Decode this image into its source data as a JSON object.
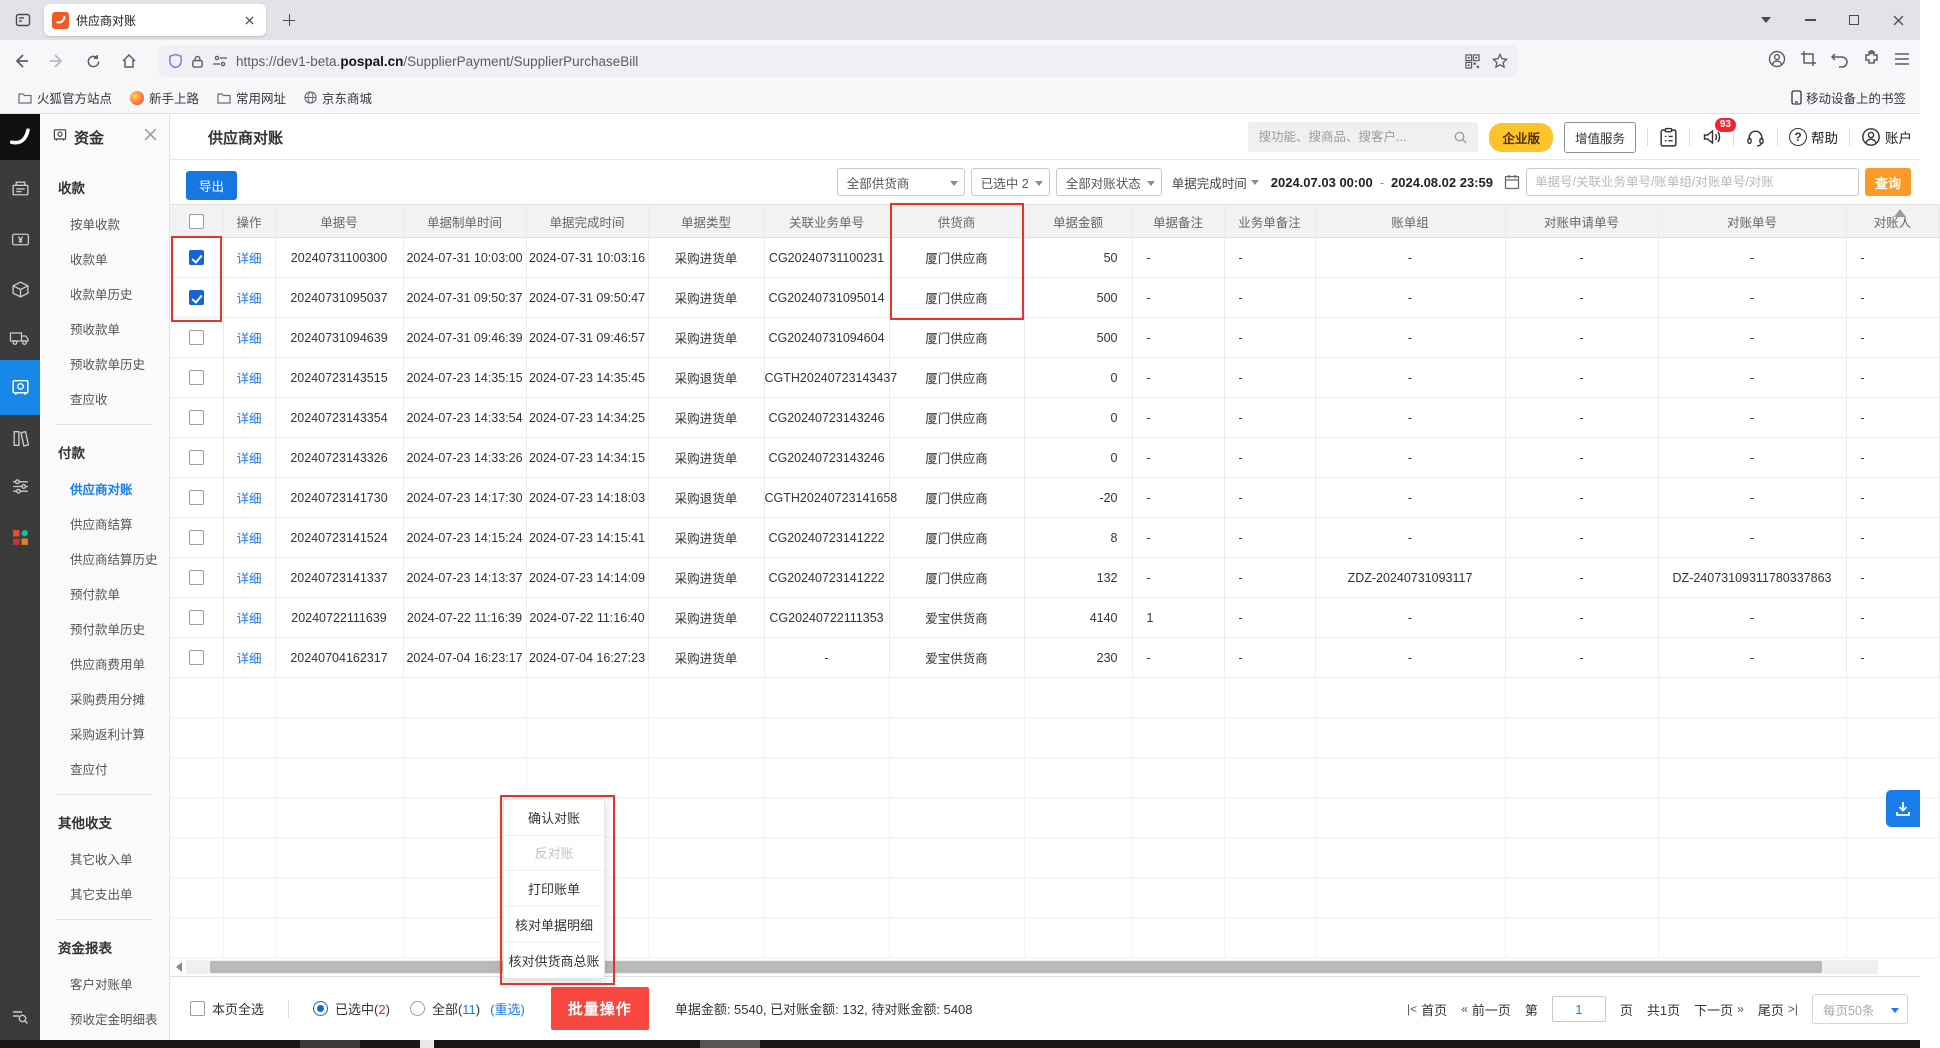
{
  "browser": {
    "tab_title": "供应商对账",
    "url_prefix": "https://dev1-beta.",
    "url_domain": "pospal.cn",
    "url_path": "/SupplierPayment/SupplierPurchaseBill",
    "bookmarks": [
      "火狐官方站点",
      "新手上路",
      "常用网址",
      "京东商城"
    ],
    "bookmarks_right": "移动设备上的书签"
  },
  "icons": {
    "help": "?"
  },
  "sidebar": {
    "title": "资金",
    "sections": [
      {
        "heading": "收款",
        "items": [
          {
            "label": "按单收款"
          },
          {
            "label": "收款单"
          },
          {
            "label": "收款单历史"
          },
          {
            "label": "预收款单"
          },
          {
            "label": "预收款单历史"
          },
          {
            "label": "查应收"
          }
        ]
      },
      {
        "heading": "付款",
        "items": [
          {
            "label": "供应商对账",
            "active": true
          },
          {
            "label": "供应商结算"
          },
          {
            "label": "供应商结算历史"
          },
          {
            "label": "预付款单"
          },
          {
            "label": "预付款单历史"
          },
          {
            "label": "供应商费用单"
          },
          {
            "label": "采购费用分摊"
          },
          {
            "label": "采购返利计算"
          },
          {
            "label": "查应付"
          }
        ]
      },
      {
        "heading": "其他收支",
        "items": [
          {
            "label": "其它收入单"
          },
          {
            "label": "其它支出单"
          }
        ]
      },
      {
        "heading": "资金报表",
        "items": [
          {
            "label": "客户对账单"
          },
          {
            "label": "预收定金明细表"
          }
        ]
      }
    ]
  },
  "header": {
    "page_title": "供应商对账",
    "search_placeholder": "搜功能、搜商品、搜客户...",
    "edition_badge": "企业版",
    "vas_button": "增值服务",
    "notice_count": "93",
    "help_label": "帮助",
    "account_label": "账户"
  },
  "toolbar": {
    "export_label": "导出",
    "supplier_filter": "全部供货商",
    "selected_filter": "已选中 2",
    "status_filter": "全部对账状态",
    "time_type_filter": "单据完成时间",
    "date_start": "2024.07.03 00:00",
    "date_separator": "-",
    "date_end": "2024.08.02 23:59",
    "keyword_placeholder": "单据号/关联业务单号/账单组/对账单号/对账",
    "query_button": "查询"
  },
  "table": {
    "columns": [
      "",
      "操作",
      "单据号",
      "单据制单时间",
      "单据完成时间",
      "单据类型",
      "关联业务单号",
      "供货商",
      "单据金额",
      "单据备注",
      "业务单备注",
      "账单组",
      "对账申请单号",
      "对账单号",
      "对账人"
    ],
    "rows": [
      {
        "checked": true,
        "action": "详细",
        "bill_no": "20240731100300",
        "created": "2024-07-31 10:03:00",
        "completed": "2024-07-31 10:03:16",
        "type": "采购进货单",
        "related": "CG20240731100231",
        "supplier": "厦门供应商",
        "amount": "50",
        "remark": "-",
        "biz_remark": "-",
        "group": "-",
        "apply_no": "-",
        "recon_no": "-",
        "person": "-"
      },
      {
        "checked": true,
        "action": "详细",
        "bill_no": "20240731095037",
        "created": "2024-07-31 09:50:37",
        "completed": "2024-07-31 09:50:47",
        "type": "采购进货单",
        "related": "CG20240731095014",
        "supplier": "厦门供应商",
        "amount": "500",
        "remark": "-",
        "biz_remark": "-",
        "group": "-",
        "apply_no": "-",
        "recon_no": "-",
        "person": "-"
      },
      {
        "checked": false,
        "action": "详细",
        "bill_no": "20240731094639",
        "created": "2024-07-31 09:46:39",
        "completed": "2024-07-31 09:46:57",
        "type": "采购进货单",
        "related": "CG20240731094604",
        "supplier": "厦门供应商",
        "amount": "500",
        "remark": "-",
        "biz_remark": "-",
        "group": "-",
        "apply_no": "-",
        "recon_no": "-",
        "person": "-"
      },
      {
        "checked": false,
        "action": "详细",
        "bill_no": "20240723143515",
        "created": "2024-07-23 14:35:15",
        "completed": "2024-07-23 14:35:45",
        "type": "采购退货单",
        "related": "CGTH20240723143437",
        "supplier": "厦门供应商",
        "amount": "0",
        "remark": "-",
        "biz_remark": "-",
        "group": "-",
        "apply_no": "-",
        "recon_no": "-",
        "person": "-"
      },
      {
        "checked": false,
        "action": "详细",
        "bill_no": "20240723143354",
        "created": "2024-07-23 14:33:54",
        "completed": "2024-07-23 14:34:25",
        "type": "采购进货单",
        "related": "CG20240723143246",
        "supplier": "厦门供应商",
        "amount": "0",
        "remark": "-",
        "biz_remark": "-",
        "group": "-",
        "apply_no": "-",
        "recon_no": "-",
        "person": "-"
      },
      {
        "checked": false,
        "action": "详细",
        "bill_no": "20240723143326",
        "created": "2024-07-23 14:33:26",
        "completed": "2024-07-23 14:34:15",
        "type": "采购进货单",
        "related": "CG20240723143246",
        "supplier": "厦门供应商",
        "amount": "0",
        "remark": "-",
        "biz_remark": "-",
        "group": "-",
        "apply_no": "-",
        "recon_no": "-",
        "person": "-"
      },
      {
        "checked": false,
        "action": "详细",
        "bill_no": "20240723141730",
        "created": "2024-07-23 14:17:30",
        "completed": "2024-07-23 14:18:03",
        "type": "采购退货单",
        "related": "CGTH20240723141658",
        "supplier": "厦门供应商",
        "amount": "-20",
        "remark": "-",
        "biz_remark": "-",
        "group": "-",
        "apply_no": "-",
        "recon_no": "-",
        "person": "-"
      },
      {
        "checked": false,
        "action": "详细",
        "bill_no": "20240723141524",
        "created": "2024-07-23 14:15:24",
        "completed": "2024-07-23 14:15:41",
        "type": "采购进货单",
        "related": "CG20240723141222",
        "supplier": "厦门供应商",
        "amount": "8",
        "remark": "-",
        "biz_remark": "-",
        "group": "-",
        "apply_no": "-",
        "recon_no": "-",
        "person": "-"
      },
      {
        "checked": false,
        "action": "详细",
        "bill_no": "20240723141337",
        "created": "2024-07-23 14:13:37",
        "completed": "2024-07-23 14:14:09",
        "type": "采购进货单",
        "related": "CG20240723141222",
        "supplier": "厦门供应商",
        "amount": "132",
        "remark": "-",
        "biz_remark": "-",
        "group": "ZDZ-20240731093117",
        "apply_no": "-",
        "recon_no": "DZ-24073109311780337863",
        "person": "-"
      },
      {
        "checked": false,
        "action": "详细",
        "bill_no": "20240722111639",
        "created": "2024-07-22 11:16:39",
        "completed": "2024-07-22 11:16:40",
        "type": "采购进货单",
        "related": "CG20240722111353",
        "supplier": "爱宝供货商",
        "amount": "4140",
        "remark": "1",
        "biz_remark": "-",
        "group": "-",
        "apply_no": "-",
        "recon_no": "-",
        "person": "-"
      },
      {
        "checked": false,
        "action": "详细",
        "bill_no": "20240704162317",
        "created": "2024-07-04 16:23:17",
        "completed": "2024-07-04 16:27:23",
        "type": "采购进货单",
        "related": "-",
        "supplier": "爱宝供货商",
        "amount": "230",
        "remark": "-",
        "biz_remark": "-",
        "group": "-",
        "apply_no": "-",
        "recon_no": "-",
        "person": "-"
      }
    ]
  },
  "context_menu": {
    "items": [
      {
        "label": "确认对账",
        "disabled": false
      },
      {
        "label": "反对账",
        "disabled": true
      },
      {
        "label": "打印账单",
        "disabled": false
      },
      {
        "label": "核对单据明细",
        "disabled": false
      },
      {
        "label": "核对供货商总账",
        "disabled": false
      }
    ]
  },
  "footer": {
    "select_all_label": "本页全选",
    "selected_pre": "已选中(",
    "selected_count": "2",
    "paren_close": ")",
    "all_pre": "全部(",
    "all_count": "11",
    "reselect_label": "(重选)",
    "batch_button": "批量操作",
    "totals": "单据金额: 5540, 已对账金额: 132, 待对账金额: 5408"
  },
  "pagination": {
    "first_icon": "|<",
    "first": "首页",
    "prev_icon": "«",
    "prev": "前一页",
    "page_label_before": "第",
    "page_value": "1",
    "page_label_after": "页",
    "total": "共1页",
    "next": "下一页",
    "next_icon": "»",
    "last": "尾页",
    "last_icon": ">|",
    "page_size": "每页50条"
  }
}
